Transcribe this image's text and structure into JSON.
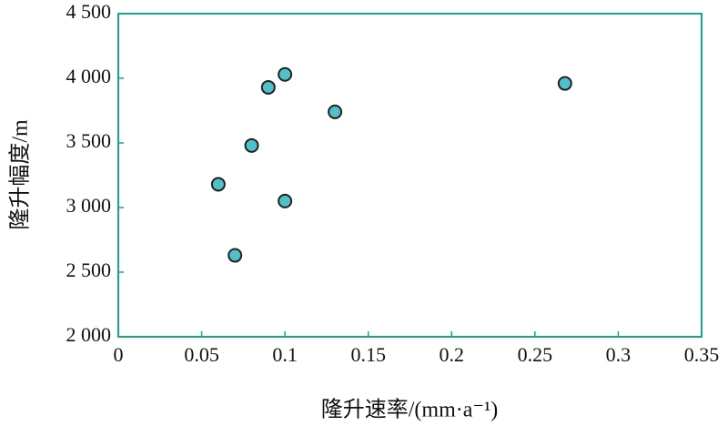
{
  "chart_data": {
    "type": "scatter",
    "x_label": "隆升速率/(mm·a⁻¹)",
    "y_label": "隆升幅度/m",
    "x": [
      0.06,
      0.07,
      0.08,
      0.09,
      0.1,
      0.1,
      0.13,
      0.268
    ],
    "values": [
      3180,
      2630,
      3480,
      3930,
      4030,
      3050,
      3740,
      3960
    ],
    "color": "#4fc1c9",
    "frame_color": "#1aa58a",
    "xlim": [
      0,
      0.35
    ],
    "xticks": [
      0,
      0.05,
      0.1,
      0.15,
      0.2,
      0.25,
      0.3,
      0.35
    ],
    "ylim": [
      2000,
      4500
    ],
    "yticks": [
      {
        "value": 2000,
        "label": "2 000"
      },
      {
        "value": 2500,
        "label": "2 500"
      },
      {
        "value": 3000,
        "label": "3 000"
      },
      {
        "value": 3500,
        "label": "3 500"
      },
      {
        "value": 4000,
        "label": "4 000"
      },
      {
        "value": 4500,
        "label": "4 500"
      }
    ]
  }
}
